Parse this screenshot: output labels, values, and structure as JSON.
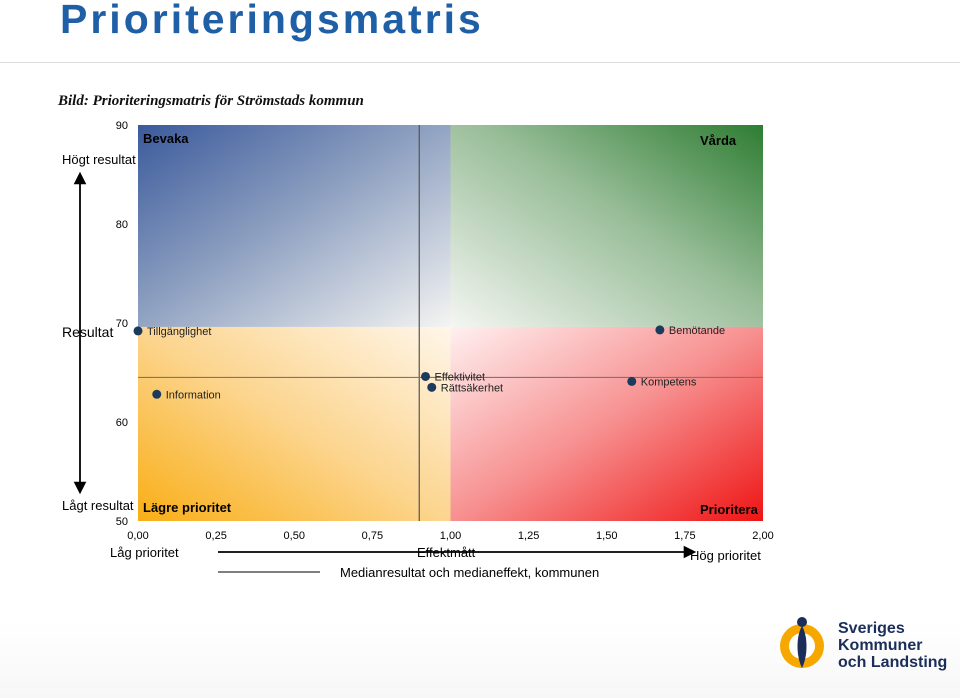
{
  "page": {
    "title": "Prioriteringsmatris",
    "caption": "Bild: Prioriteringsmatris för Strömstads kommun"
  },
  "colors": {
    "title": "#1f5fa6",
    "marker": "#1b3a5c",
    "quadrant_top_left": "#3e5fa0",
    "quadrant_top_right": "#2e7d32",
    "quadrant_bottom_left": "#f9b21a",
    "quadrant_bottom_right": "#ef1c1c",
    "logo_navy": "#1b2d59",
    "logo_yellow": "#f6a800"
  },
  "y_axis": {
    "top_label": "Högt resultat",
    "middle_label": "Resultat",
    "bottom_label": "Lågt resultat"
  },
  "x_axis": {
    "left_label": "Låg prioritet",
    "middle_label": "Effektmått",
    "right_label": "Hög prioritet"
  },
  "quadrants": {
    "top_left": "Bevaka",
    "top_right": "Vårda",
    "bottom_left": "Lägre prioritet",
    "bottom_right": "Prioritera"
  },
  "legend": {
    "median_line": "Medianresultat och medianeffekt, kommunen"
  },
  "logo": {
    "line1": "Sveriges",
    "line2": "Kommuner",
    "line3": "och Landsting"
  },
  "chart_data": {
    "type": "scatter",
    "xlim": [
      0,
      2
    ],
    "ylim": [
      50,
      90
    ],
    "x_ticks": [
      "0,00",
      "0,25",
      "0,50",
      "0,75",
      "1,00",
      "1,25",
      "1,50",
      "1,75",
      "2,00"
    ],
    "y_ticks": [
      "50",
      "60",
      "70",
      "80",
      "90"
    ],
    "median_x": 0.9,
    "median_y": 64.5,
    "points": [
      {
        "label": "Tillgänglighet",
        "x": 0.0,
        "y": 69.2
      },
      {
        "label": "Bemötande",
        "x": 1.67,
        "y": 69.3
      },
      {
        "label": "Information",
        "x": 0.06,
        "y": 62.8
      },
      {
        "label": "Effektivitet",
        "x": 0.92,
        "y": 64.6
      },
      {
        "label": "Rättsäkerhet",
        "x": 0.94,
        "y": 63.5
      },
      {
        "label": "Kompetens",
        "x": 1.58,
        "y": 64.1
      }
    ]
  }
}
